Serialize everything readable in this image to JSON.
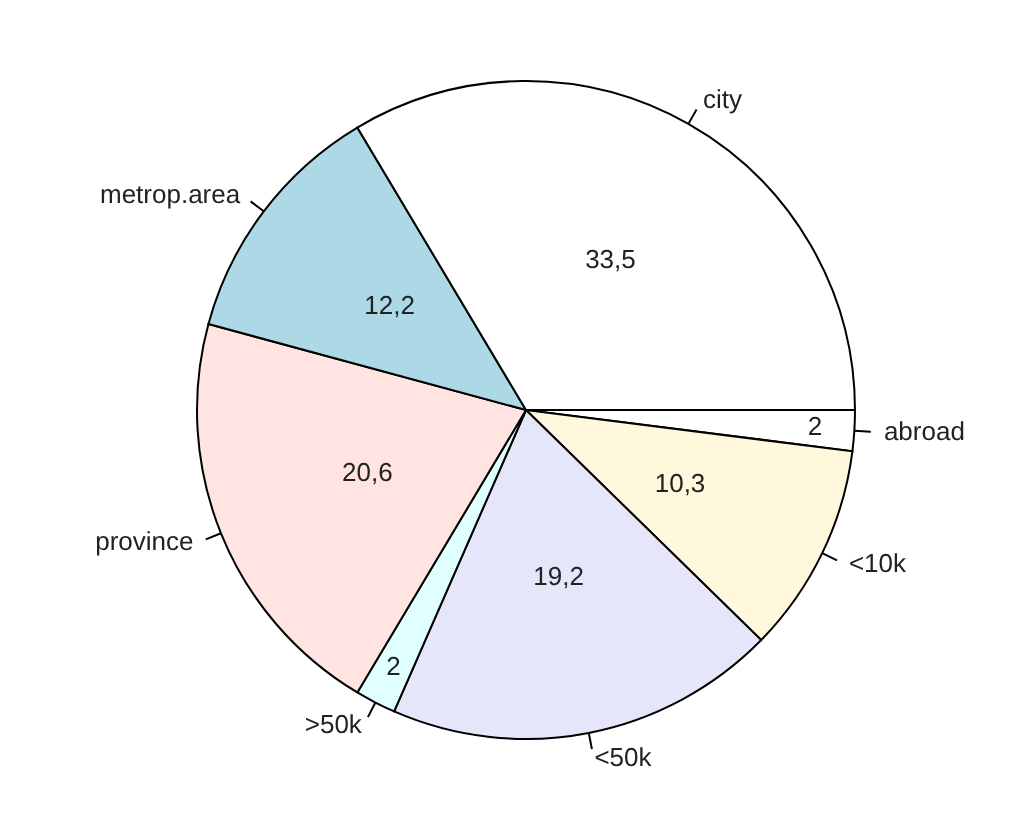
{
  "chart_data": {
    "type": "pie",
    "categories": [
      "abroad",
      "<10k",
      "<50k",
      ">50k",
      "province",
      "metrop.area",
      "city"
    ],
    "values": [
      2,
      10.3,
      19.2,
      2,
      20.6,
      12.2,
      33.5
    ],
    "value_labels": [
      "2",
      "10,3",
      "19,2",
      "2",
      "20,6",
      "12,2",
      "33,5"
    ],
    "colors": [
      "#ffffff",
      "#fff8dc",
      "#e6e6fa",
      "#e0ffff",
      "#ffe4e1",
      "#add8e6",
      "#ffffff"
    ],
    "legend": false
  }
}
